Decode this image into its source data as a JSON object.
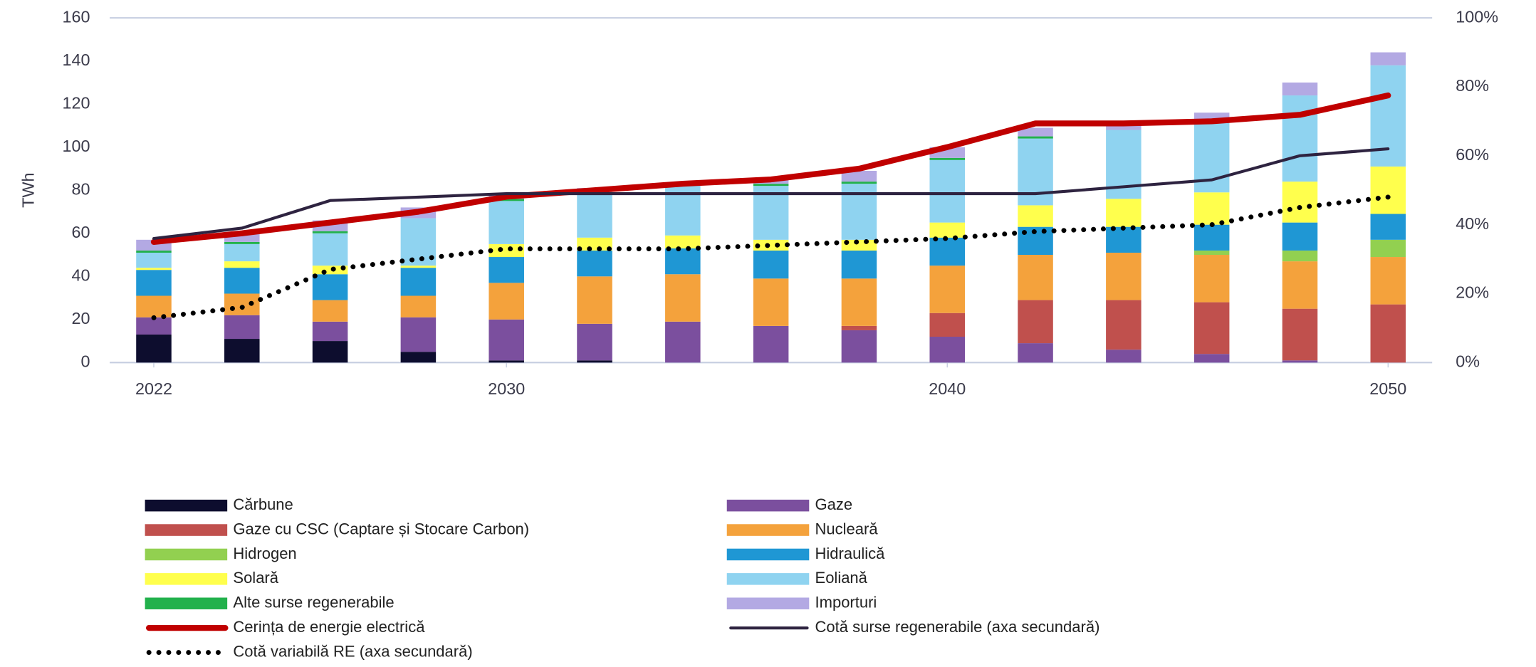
{
  "chart_data": {
    "type": "bar",
    "ylabel": "TWh",
    "x": [
      2022,
      2024,
      2026,
      2028,
      2030,
      2032,
      2034,
      2036,
      2038,
      2040,
      2042,
      2044,
      2046,
      2048,
      2050
    ],
    "xlim": [
      2021,
      2051
    ],
    "xticks": [
      2022,
      2030,
      2040,
      2050
    ],
    "ylim": [
      0,
      160
    ],
    "yticks": [
      0,
      20,
      40,
      60,
      80,
      100,
      120,
      140,
      160
    ],
    "y2lim": [
      0,
      100
    ],
    "y2ticks": [
      {
        "value": 0,
        "label": "0%"
      },
      {
        "value": 20,
        "label": "20%"
      },
      {
        "value": 40,
        "label": "40%"
      },
      {
        "value": 60,
        "label": "60%"
      },
      {
        "value": 80,
        "label": "80%"
      },
      {
        "value": 100,
        "label": "100%"
      }
    ],
    "series": [
      {
        "name": "Cărbune",
        "type": "bar",
        "color": "#0d0d2e",
        "values": [
          13,
          11,
          10,
          5,
          1,
          1,
          0,
          0,
          0,
          0,
          0,
          0,
          0,
          0,
          0
        ]
      },
      {
        "name": "Gaze",
        "type": "bar",
        "color": "#7b4f9e",
        "values": [
          8,
          11,
          9,
          16,
          19,
          17,
          19,
          17,
          15,
          12,
          9,
          6,
          4,
          1,
          0
        ]
      },
      {
        "name": "Gaze cu CSC (Captare și Stocare Carbon)",
        "type": "bar",
        "color": "#c0504d",
        "values": [
          0,
          0,
          0,
          0,
          0,
          0,
          0,
          0,
          2,
          11,
          20,
          23,
          24,
          24,
          27
        ]
      },
      {
        "name": "Nucleară",
        "type": "bar",
        "color": "#f4a23c",
        "values": [
          10,
          10,
          10,
          10,
          17,
          22,
          22,
          22,
          22,
          22,
          21,
          22,
          22,
          22,
          22
        ]
      },
      {
        "name": "Hidrogen",
        "type": "bar",
        "color": "#92d050",
        "values": [
          0,
          0,
          0,
          0,
          0,
          0,
          0,
          0,
          0,
          0,
          0,
          0,
          2,
          5,
          8
        ]
      },
      {
        "name": "Hidraulică",
        "type": "bar",
        "color": "#1f97d4",
        "values": [
          12,
          12,
          12,
          13,
          12,
          12,
          12,
          13,
          13,
          13,
          13,
          12,
          12,
          13,
          12
        ]
      },
      {
        "name": "Solară",
        "type": "bar",
        "color": "#ffff4d",
        "values": [
          1,
          3,
          4,
          1,
          6,
          6,
          6,
          5,
          5,
          7,
          10,
          13,
          15,
          19,
          22
        ]
      },
      {
        "name": "Eoliană",
        "type": "bar",
        "color": "#8fd3f0",
        "values": [
          7,
          8,
          15,
          22,
          20,
          22,
          23,
          25,
          26,
          29,
          31,
          32,
          34,
          40,
          47
        ]
      },
      {
        "name": "Alte surse regenerabile",
        "type": "bar",
        "color": "#22b14c",
        "values": [
          1,
          1,
          1,
          0,
          1,
          0,
          0,
          1,
          1,
          1,
          1,
          0,
          0,
          0,
          0
        ]
      },
      {
        "name": "Importuri",
        "type": "bar",
        "color": "#b3a9e3",
        "values": [
          5,
          4,
          5,
          5,
          2,
          1,
          1,
          2,
          5,
          5,
          4,
          3,
          3,
          6,
          6
        ]
      },
      {
        "name": "Cerința de energie electrică",
        "type": "line",
        "color": "#c00000",
        "values": [
          56,
          60,
          65,
          70,
          77,
          80,
          83,
          85,
          90,
          100,
          111,
          111,
          112,
          115,
          124
        ]
      },
      {
        "name": "Cotă surse regenerabile (axa secundară)",
        "type": "line",
        "axis": "y2",
        "color": "#2e2340",
        "values": [
          36,
          39,
          47,
          48,
          49,
          49,
          49,
          49,
          49,
          49,
          49,
          51,
          53,
          60,
          62
        ]
      },
      {
        "name": "Cotă variabilă RE (axa secundară)",
        "type": "line",
        "axis": "y2",
        "linestyle": "dotted",
        "color": "#000000",
        "values": [
          13,
          16,
          27,
          30,
          33,
          33,
          33,
          34,
          35,
          36,
          38,
          39,
          40,
          45,
          48
        ]
      }
    ]
  }
}
